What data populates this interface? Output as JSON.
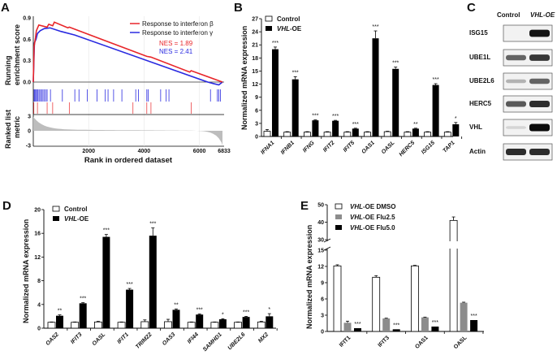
{
  "chart_data": [
    {
      "panel": "A",
      "type": "line",
      "xlabel": "Rank in ordered dataset",
      "ylabel_lines": [
        "Running",
        "enrichment score"
      ],
      "metric_label_lines": [
        "Ranked list",
        "metric"
      ],
      "x_ticks": [
        "2000",
        "4000",
        "6000",
        "6833"
      ],
      "x_tick_values": [
        2000,
        4000,
        6000,
        6833
      ],
      "y_ticks": [
        "0.0",
        "0.3",
        "0.6",
        "0.9"
      ],
      "metric_ticks": [
        "3",
        "0",
        "-3"
      ],
      "xlim": [
        0,
        6833
      ],
      "ylim": [
        0,
        0.9
      ],
      "series": [
        {
          "name": "Response to interferon β",
          "color": "#e8262a",
          "nes": "NES = 1.89",
          "points": [
            [
              0,
              0
            ],
            [
              30,
              0.5
            ],
            [
              80,
              0.62
            ],
            [
              110,
              0.72
            ],
            [
              200,
              0.8
            ],
            [
              500,
              0.77
            ],
            [
              560,
              0.81
            ],
            [
              700,
              0.79
            ],
            [
              760,
              0.84
            ],
            [
              1250,
              0.76
            ],
            [
              1300,
              0.77
            ],
            [
              4100,
              0.36
            ],
            [
              4250,
              0.35
            ],
            [
              5650,
              0.14
            ],
            [
              5700,
              0.16
            ],
            [
              6833,
              0.0
            ]
          ],
          "hits": [
            20,
            150,
            500,
            700,
            1300,
            3600,
            4100,
            4250,
            5700
          ]
        },
        {
          "name": "Response to interferon γ",
          "color": "#2a2ae0",
          "nes": "NES = 2.41",
          "points": [
            [
              0,
              0
            ],
            [
              40,
              0.55
            ],
            [
              100,
              0.6
            ],
            [
              150,
              0.68
            ],
            [
              250,
              0.72
            ],
            [
              400,
              0.75
            ],
            [
              600,
              0.76
            ],
            [
              1000,
              0.71
            ],
            [
              1500,
              0.66
            ],
            [
              6300,
              0.0
            ],
            [
              6500,
              -0.02
            ],
            [
              6700,
              -0.04
            ],
            [
              6833,
              0.0
            ]
          ],
          "hits": [
            30,
            60,
            90,
            130,
            170,
            210,
            260,
            300,
            350,
            400,
            450,
            500,
            620,
            1050,
            1500,
            1650,
            1950,
            2300,
            2600,
            2700,
            2900,
            3200,
            3700,
            3800,
            4100,
            4150,
            4600,
            4800,
            4900,
            6400,
            6650,
            6700,
            6760
          ]
        }
      ]
    },
    {
      "panel": "B",
      "type": "bar",
      "ylabel": "Normalized mRNA expression",
      "ylim": [
        0,
        27
      ],
      "y_ticks": [
        "0",
        "3",
        "6",
        "9",
        "12",
        "15",
        "18",
        "21",
        "24",
        "27"
      ],
      "categories": [
        "IFNA1",
        "IFNB1",
        "IFNG",
        "IFIT2",
        "IFIT5",
        "OAS1",
        "OASL",
        "HERC5",
        "ISG15",
        "TAP1"
      ],
      "series": [
        {
          "name": "Control",
          "values": [
            1.2,
            1.0,
            1.0,
            1.0,
            1.0,
            1.0,
            1.1,
            1.0,
            1.0,
            1.0
          ],
          "errors": [
            0.4,
            0.1,
            0.1,
            0.1,
            0.1,
            0.1,
            0.1,
            0.1,
            0.1,
            0.1
          ]
        },
        {
          "name": "VHL-OE",
          "values": [
            20.0,
            13.1,
            3.7,
            3.6,
            1.8,
            22.5,
            15.5,
            1.8,
            11.8,
            2.8
          ],
          "errors": [
            0.5,
            0.6,
            0.1,
            0.1,
            0.1,
            1.7,
            0.4,
            0.1,
            0.3,
            0.4
          ]
        }
      ],
      "significance": [
        "***",
        "***",
        "***",
        "***",
        "***",
        "***",
        "***",
        "**",
        "***",
        "*"
      ]
    },
    {
      "panel": "C",
      "type": "blot",
      "columns": [
        "Control",
        "VHL-OE"
      ],
      "rows": [
        "ISG15",
        "UBE1L",
        "UBE2L6",
        "HERC5",
        "VHL",
        "Actin"
      ],
      "band_intensity": [
        [
          0.05,
          0.95
        ],
        [
          0.6,
          0.8
        ],
        [
          0.25,
          0.6
        ],
        [
          0.65,
          0.85
        ],
        [
          0.1,
          1.0
        ],
        [
          0.85,
          0.85
        ]
      ]
    },
    {
      "panel": "D",
      "type": "bar",
      "ylabel": "Normalized mRNA expression",
      "ylim": [
        0,
        20
      ],
      "y_ticks": [
        "0",
        "4",
        "8",
        "12",
        "16",
        "20"
      ],
      "categories": [
        "OAS2",
        "IFIT3",
        "OASL",
        "IFIT1",
        "TRIM22",
        "OAS3",
        "IFI44",
        "SAMHD1",
        "UBE2L6",
        "MX2"
      ],
      "series": [
        {
          "name": "Control",
          "values": [
            1.0,
            1.0,
            1.05,
            1.0,
            1.1,
            1.1,
            1.0,
            1.0,
            1.0,
            1.05
          ],
          "errors": [
            0.05,
            0.05,
            0.1,
            0.05,
            0.3,
            0.4,
            0.05,
            0.05,
            0.05,
            0.1
          ]
        },
        {
          "name": "VHL-OE",
          "values": [
            2.1,
            4.2,
            15.4,
            6.5,
            15.6,
            3.1,
            2.3,
            1.5,
            1.9,
            2.0
          ],
          "errors": [
            0.15,
            0.1,
            0.4,
            0.2,
            1.3,
            0.15,
            0.1,
            0.1,
            0.1,
            0.45
          ]
        }
      ],
      "significance": [
        "**",
        "***",
        "***",
        "***",
        "***",
        "**",
        "***",
        "*",
        "***",
        "*"
      ]
    },
    {
      "panel": "E",
      "type": "bar",
      "ylabel": "Normalized mRNA expression",
      "ylim": [
        0,
        50
      ],
      "axis_break": [
        15,
        30
      ],
      "y_ticks_lower": [
        "0",
        "3",
        "6",
        "9",
        "12",
        "15"
      ],
      "y_ticks_upper": [
        "30",
        "40",
        "50"
      ],
      "categories": [
        "IFIT1",
        "IFIT3",
        "OAS1",
        "OASL"
      ],
      "series": [
        {
          "name_italic": "VHL",
          "name_rest": "-OE DMSO",
          "color": "#ffffff",
          "values": [
            12.1,
            10.0,
            12.1,
            41.0
          ],
          "errors": [
            0.2,
            0.3,
            0.1,
            2.0
          ]
        },
        {
          "name_italic": "VHL",
          "name_rest": "-OE Flu2.5",
          "color": "#8c8c8c",
          "values": [
            1.6,
            2.4,
            2.6,
            5.3
          ],
          "errors": [
            0.3,
            0.05,
            0.05,
            0.1
          ]
        },
        {
          "name_italic": "VHL",
          "name_rest": "-OE Flu5.0",
          "color": "#000000",
          "values": [
            0.6,
            0.4,
            0.9,
            2.1
          ],
          "errors": [
            0,
            0,
            0,
            0
          ]
        }
      ],
      "significance": [
        "***",
        "***",
        "***",
        "***"
      ]
    }
  ],
  "panel_labels": [
    "A",
    "B",
    "C",
    "D",
    "E"
  ],
  "legend_bd": {
    "control": "Control",
    "vhl_italic": "VHL",
    "vhl_rest": "-OE"
  }
}
